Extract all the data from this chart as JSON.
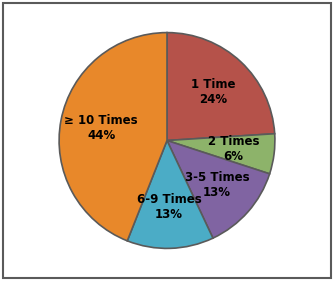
{
  "slices": [
    {
      "label": "1 Time\n24%",
      "value": 24,
      "color": "#b5524a"
    },
    {
      "label": "2 Times\n6%",
      "value": 6,
      "color": "#8db36a"
    },
    {
      "label": "3-5 Times\n13%",
      "value": 13,
      "color": "#8064a2"
    },
    {
      "label": "6-9 Times\n13%",
      "value": 13,
      "color": "#4bacc6"
    },
    {
      "label": "≥ 10 Times\n44%",
      "value": 44,
      "color": "#e8882a"
    }
  ],
  "edge_color": "#5a5a5a",
  "edge_linewidth": 1.2,
  "label_fontsize": 8.5,
  "label_fontweight": "bold",
  "background_color": "#ffffff",
  "startangle": 90,
  "labeldistance": 0.62
}
